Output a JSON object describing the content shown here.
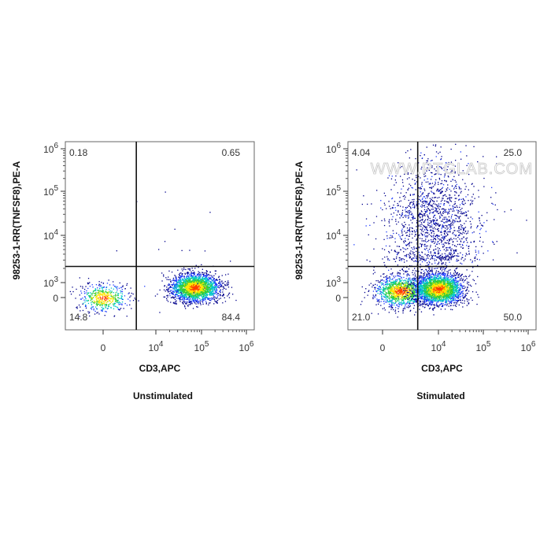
{
  "chart_data": [
    {
      "type": "scatter",
      "title": "Unstimulated",
      "xlabel": "CD3,APC",
      "ylabel": "98253-1-RR(TNFSF8),PE-A",
      "x_scale": "biexponential",
      "y_scale": "biexponential",
      "x_ticks": [
        {
          "value": 0,
          "label": "0"
        },
        {
          "value": 10000,
          "label": "10^4"
        },
        {
          "value": 100000,
          "label": "10^5"
        },
        {
          "value": 1000000,
          "label": "10^6"
        }
      ],
      "y_ticks": [
        {
          "value": 0,
          "label": "0"
        },
        {
          "value": 1000,
          "label": "10^3"
        },
        {
          "value": 10000,
          "label": "10^4"
        },
        {
          "value": 100000,
          "label": "10^5"
        },
        {
          "value": 1000000,
          "label": "10^6"
        }
      ],
      "gate": {
        "x": 1500,
        "y": 2200
      },
      "quadrants": {
        "upper_left": "0.18",
        "upper_right": "0.65",
        "lower_left": "14.8",
        "lower_right": "84.4"
      },
      "populations": [
        {
          "x_center": 0,
          "y_center": 0,
          "count": 500
        },
        {
          "x_center": 70000,
          "y_center": 400,
          "count": 2200
        },
        {
          "x_center": 30000,
          "y_center": 3000,
          "count": 25,
          "diffuse": true
        }
      ],
      "color_scale": [
        "#00008b",
        "#1e3cff",
        "#00c8c8",
        "#32cd32",
        "#ffe600",
        "#ff3c00"
      ]
    },
    {
      "type": "scatter",
      "title": "Stimulated",
      "xlabel": "CD3,APC",
      "ylabel": "98253-1-RR(TNFSF8),PE-A",
      "x_scale": "biexponential",
      "y_scale": "biexponential",
      "x_ticks": [
        {
          "value": 0,
          "label": "0"
        },
        {
          "value": 10000,
          "label": "10^4"
        },
        {
          "value": 100000,
          "label": "10^5"
        },
        {
          "value": 1000000,
          "label": "10^6"
        }
      ],
      "y_ticks": [
        {
          "value": 0,
          "label": "0"
        },
        {
          "value": 1000,
          "label": "10^3"
        },
        {
          "value": 10000,
          "label": "10^4"
        },
        {
          "value": 100000,
          "label": "10^5"
        },
        {
          "value": 1000000,
          "label": "10^6"
        }
      ],
      "gate": {
        "x": 1500,
        "y": 2200
      },
      "quadrants": {
        "upper_left": "4.04",
        "upper_right": "25.0",
        "lower_left": "21.0",
        "lower_right": "50.0"
      },
      "populations": [
        {
          "x_center": 300,
          "y_center": 200,
          "count": 1200
        },
        {
          "x_center": 10000,
          "y_center": 300,
          "count": 2400
        },
        {
          "x_center": 6000,
          "y_center": 20000,
          "count": 1600,
          "diffuse": true
        }
      ],
      "color_scale": [
        "#00008b",
        "#1e3cff",
        "#00c8c8",
        "#32cd32",
        "#ffe600",
        "#ff3c00"
      ],
      "watermark": "WWW.PTGLAB.COM"
    }
  ]
}
